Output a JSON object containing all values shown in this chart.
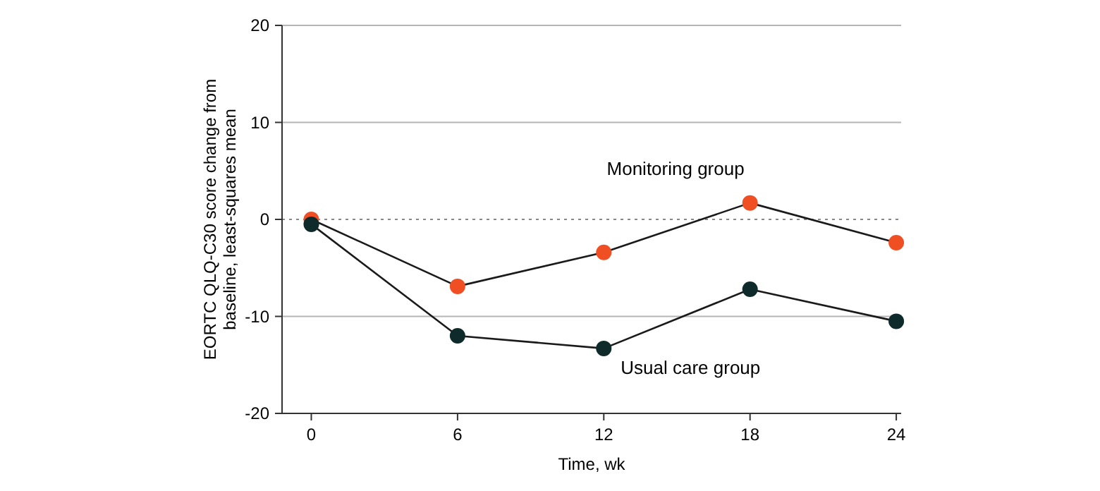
{
  "chart_data": {
    "type": "line",
    "xlabel": "Time, wk",
    "ylabel": "EORTC QLQ-C30 score change from baseline, least-squares mean",
    "x": [
      0,
      6,
      12,
      18,
      24
    ],
    "xlim": [
      -1.2,
      24.2
    ],
    "xticks": [
      0,
      6,
      12,
      18,
      24
    ],
    "ylim": [
      -20,
      20
    ],
    "yticks": [
      -20,
      -10,
      0,
      10,
      20
    ],
    "series": [
      {
        "name": "Monitoring group",
        "color": "#f04e23",
        "values": [
          0,
          -6.9,
          -3.4,
          1.7,
          -2.4
        ]
      },
      {
        "name": "Usual care group",
        "color": "#0f2a2a",
        "values": [
          -0.5,
          -12.0,
          -13.3,
          -7.2,
          -10.5
        ]
      }
    ],
    "ref_lines": [
      {
        "axis": "y",
        "value": 0,
        "line_style": "dotted",
        "color": "#888888"
      }
    ],
    "grid": "y",
    "marker": "circle"
  }
}
